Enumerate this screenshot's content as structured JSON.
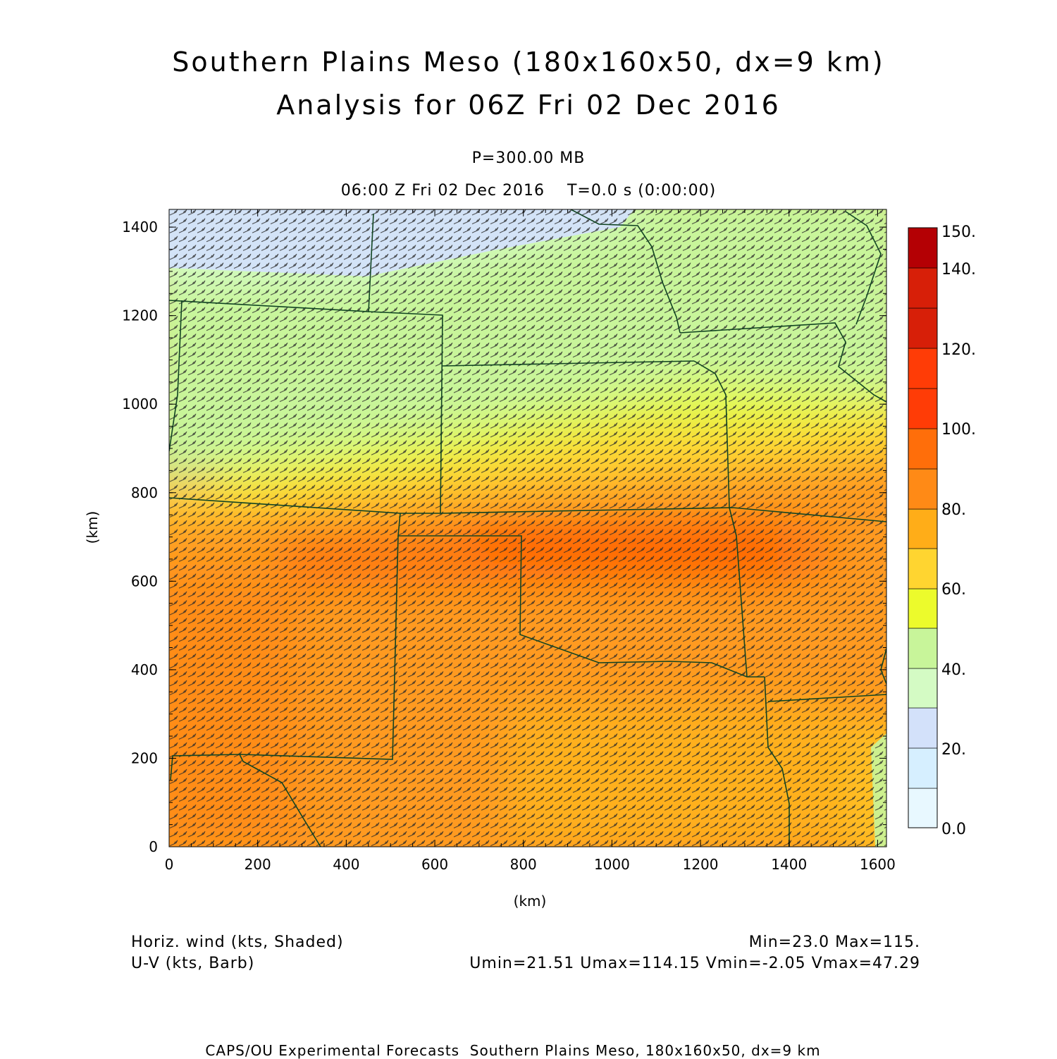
{
  "header": {
    "title_line1": "Southern Plains Meso (180x160x50, dx=9 km)",
    "title_line2": "Analysis for 06Z Fri 02 Dec 2016",
    "level": "P=300.00 MB",
    "time_line": "06:00 Z Fri 02 Dec 2016    T=0.0 s (0:00:00)"
  },
  "axes": {
    "x_label": "(km)",
    "y_label": "(km)",
    "x_ticks": [
      "0",
      "200",
      "400",
      "600",
      "800",
      "1000",
      "1200",
      "1400",
      "1600"
    ],
    "y_ticks": [
      "0",
      "200",
      "400",
      "600",
      "800",
      "1000",
      "1200",
      "1400"
    ],
    "x_range": [
      0,
      1620
    ],
    "y_range": [
      0,
      1440
    ]
  },
  "colorbar": {
    "labels": [
      "0.0",
      "20.",
      "40.",
      "60.",
      "80.",
      "100.",
      "120.",
      "140.",
      "150."
    ],
    "colors": [
      "#e8f8ff",
      "#d6efff",
      "#d3e1fa",
      "#d4fbc4",
      "#c8f59a",
      "#ecfb2c",
      "#ffd530",
      "#ffad18",
      "#ff8a16",
      "#ff6e0a",
      "#ff3c06",
      "#d71f08",
      "#b40004"
    ]
  },
  "legend": {
    "field1": "Horiz. wind (kts, Shaded)",
    "field2": "U-V (kts, Barb)",
    "stats1": "Min=23.0 Max=115.",
    "stats2": "Umin=21.51 Umax=114.15 Vmin=-2.05 Vmax=47.29"
  },
  "footer": {
    "credit": "CAPS/OU Experimental Forecasts  Southern Plains Meso, 180x160x50, dx=9 km"
  }
}
